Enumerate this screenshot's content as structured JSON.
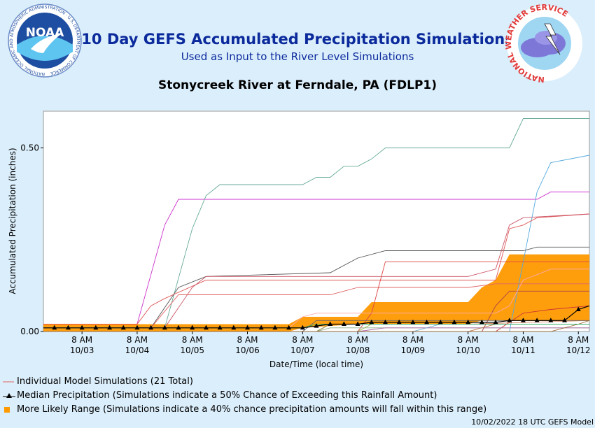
{
  "header": {
    "title": "10 Day GEFS Accumulated Precipitation Simulations",
    "subtitle": "Used as Input to the River Level Simulations",
    "station": "Stonycreek River at Ferndale, PA (FDLP1)",
    "noaa_logo_text": "NOAA",
    "noaa_ring_text": "NATIONAL OCEANIC AND ATMOSPHERIC ADMINISTRATION · U.S. DEPARTMENT OF COMMERCE",
    "nws_ring_text": "NATIONAL WEATHER SERVICE"
  },
  "legend": {
    "individual": "Individual Model Simulations (21 Total)",
    "median": "Median Precipitation (Simulations indicate a 50% Chance of Exceeding this Rainfall Amount)",
    "range": "More Likely Range (Simulations indicate a 40% chance precipitation amounts will fall within this range)"
  },
  "footer": "10/02/2022 18 UTC GEFS Model",
  "colors": {
    "background": "#dbeefb",
    "title": "#0b2a9c",
    "range_fill": "#ff9900",
    "median": "#000000",
    "plot_bg": "#ffffff"
  },
  "chart_data": {
    "type": "line",
    "xlabel": "Date/Time (local time)",
    "ylabel": "Accumulated Precipitation (inches)",
    "ylim": [
      0,
      0.6
    ],
    "yticks": [
      0.0,
      0.5
    ],
    "ytick_labels": [
      "0.00",
      "0.50"
    ],
    "xlim": [
      -0.7,
      9.2
    ],
    "xticks": [
      {
        "x": 0,
        "line1": "8 AM",
        "line2": "10/03"
      },
      {
        "x": 1,
        "line1": "8 AM",
        "line2": "10/04"
      },
      {
        "x": 2,
        "line1": "8 AM",
        "line2": "10/05"
      },
      {
        "x": 3,
        "line1": "8 AM",
        "line2": "10/06"
      },
      {
        "x": 4,
        "line1": "8 AM",
        "line2": "10/07"
      },
      {
        "x": 5,
        "line1": "8 AM",
        "line2": "10/08"
      },
      {
        "x": 6,
        "line1": "8 AM",
        "line2": "10/09"
      },
      {
        "x": 7,
        "line1": "8 AM",
        "line2": "10/10"
      },
      {
        "x": 8,
        "line1": "8 AM",
        "line2": "10/11"
      },
      {
        "x": 9,
        "line1": "8 AM",
        "line2": "10/12"
      }
    ],
    "range_band": [
      [
        -0.7,
        0.0,
        0.02
      ],
      [
        3.75,
        0.0,
        0.02
      ],
      [
        4.0,
        0.01,
        0.04
      ],
      [
        5.0,
        0.02,
        0.04
      ],
      [
        5.25,
        0.02,
        0.08
      ],
      [
        7.0,
        0.02,
        0.08
      ],
      [
        7.25,
        0.03,
        0.12
      ],
      [
        7.5,
        0.03,
        0.14
      ],
      [
        7.75,
        0.03,
        0.21
      ],
      [
        9.2,
        0.03,
        0.21
      ]
    ],
    "series": [
      {
        "color": "#cc33cc",
        "points": [
          [
            -0.7,
            0.02
          ],
          [
            1.0,
            0.02
          ],
          [
            1.5,
            0.29
          ],
          [
            1.75,
            0.36
          ],
          [
            8.25,
            0.36
          ],
          [
            8.5,
            0.38
          ],
          [
            9.2,
            0.38
          ]
        ]
      },
      {
        "color": "#66aa99",
        "points": [
          [
            -0.7,
            0.01
          ],
          [
            1.5,
            0.01
          ],
          [
            2.0,
            0.28
          ],
          [
            2.25,
            0.37
          ],
          [
            2.5,
            0.4
          ],
          [
            4.0,
            0.4
          ],
          [
            4.25,
            0.42
          ],
          [
            4.5,
            0.42
          ],
          [
            4.75,
            0.45
          ],
          [
            5.0,
            0.45
          ],
          [
            5.25,
            0.47
          ],
          [
            5.5,
            0.5
          ],
          [
            7.75,
            0.5
          ],
          [
            8.0,
            0.58
          ],
          [
            9.2,
            0.58
          ]
        ]
      },
      {
        "color": "#55aadd",
        "points": [
          [
            -0.7,
            0.0
          ],
          [
            7.75,
            0.0
          ],
          [
            8.25,
            0.38
          ],
          [
            8.5,
            0.46
          ],
          [
            9.2,
            0.48
          ]
        ]
      },
      {
        "color": "#555555",
        "points": [
          [
            -0.7,
            0.01
          ],
          [
            1.25,
            0.01
          ],
          [
            1.75,
            0.12
          ],
          [
            2.25,
            0.15
          ],
          [
            4.5,
            0.16
          ],
          [
            4.75,
            0.18
          ],
          [
            5.0,
            0.2
          ],
          [
            5.5,
            0.22
          ],
          [
            8.0,
            0.22
          ],
          [
            8.25,
            0.23
          ],
          [
            9.2,
            0.23
          ]
        ]
      },
      {
        "color": "#e05555",
        "points": [
          [
            -0.7,
            0.02
          ],
          [
            1.0,
            0.02
          ],
          [
            1.25,
            0.07
          ],
          [
            1.5,
            0.09
          ],
          [
            2.25,
            0.14
          ],
          [
            7.5,
            0.14
          ],
          [
            7.75,
            0.28
          ],
          [
            8.0,
            0.29
          ],
          [
            8.25,
            0.31
          ],
          [
            9.2,
            0.32
          ]
        ]
      },
      {
        "color": "#cc5566",
        "points": [
          [
            -0.7,
            0.01
          ],
          [
            1.5,
            0.01
          ],
          [
            2.0,
            0.12
          ],
          [
            2.25,
            0.15
          ],
          [
            7.0,
            0.15
          ],
          [
            7.5,
            0.17
          ],
          [
            7.75,
            0.29
          ],
          [
            8.0,
            0.31
          ],
          [
            9.2,
            0.32
          ]
        ]
      },
      {
        "color": "#e06666",
        "points": [
          [
            -0.7,
            0.01
          ],
          [
            1.25,
            0.01
          ],
          [
            1.75,
            0.1
          ],
          [
            2.25,
            0.1
          ],
          [
            4.5,
            0.1
          ],
          [
            4.75,
            0.11
          ],
          [
            5.0,
            0.12
          ],
          [
            7.0,
            0.12
          ],
          [
            7.5,
            0.13
          ],
          [
            9.2,
            0.13
          ]
        ]
      },
      {
        "color": "#dd4444",
        "points": [
          [
            -0.7,
            0.0
          ],
          [
            5.0,
            0.0
          ],
          [
            5.25,
            0.05
          ],
          [
            5.5,
            0.19
          ],
          [
            7.5,
            0.19
          ],
          [
            7.75,
            0.19
          ],
          [
            9.2,
            0.19
          ]
        ]
      },
      {
        "color": "#aa4444",
        "points": [
          [
            -0.7,
            0.0
          ],
          [
            7.25,
            0.0
          ],
          [
            7.5,
            0.07
          ],
          [
            7.75,
            0.11
          ],
          [
            9.2,
            0.11
          ]
        ]
      },
      {
        "color": "#cc3333",
        "points": [
          [
            -0.7,
            0.0
          ],
          [
            7.5,
            0.0
          ],
          [
            8.0,
            0.05
          ],
          [
            8.5,
            0.06
          ],
          [
            9.2,
            0.07
          ]
        ]
      },
      {
        "color": "#ffaaaa",
        "points": [
          [
            -0.7,
            0.01
          ],
          [
            3.75,
            0.01
          ],
          [
            4.0,
            0.04
          ],
          [
            4.25,
            0.05
          ],
          [
            5.5,
            0.05
          ],
          [
            7.5,
            0.05
          ],
          [
            7.75,
            0.07
          ],
          [
            8.0,
            0.14
          ],
          [
            8.5,
            0.17
          ],
          [
            9.2,
            0.17
          ]
        ]
      },
      {
        "color": "#dd8866",
        "points": [
          [
            -0.7,
            0.0
          ],
          [
            4.25,
            0.0
          ],
          [
            4.5,
            0.02
          ],
          [
            5.0,
            0.02
          ],
          [
            7.0,
            0.02
          ],
          [
            9.2,
            0.03
          ]
        ]
      },
      {
        "color": "#88aa88",
        "points": [
          [
            -0.7,
            0.0
          ],
          [
            4.25,
            0.0
          ],
          [
            4.5,
            0.01
          ],
          [
            9.2,
            0.01
          ]
        ]
      },
      {
        "color": "#888833",
        "points": [
          [
            -0.7,
            0.0
          ],
          [
            4.25,
            0.0
          ],
          [
            4.5,
            0.02
          ],
          [
            9.2,
            0.02
          ]
        ]
      },
      {
        "color": "#666666",
        "points": [
          [
            -0.7,
            0.0
          ],
          [
            4.0,
            0.0
          ],
          [
            4.25,
            0.03
          ],
          [
            5.0,
            0.03
          ],
          [
            7.5,
            0.03
          ],
          [
            9.2,
            0.03
          ]
        ]
      },
      {
        "color": "#99bb55",
        "points": [
          [
            -0.7,
            0.0
          ],
          [
            5.0,
            0.0
          ],
          [
            5.25,
            0.02
          ],
          [
            9.2,
            0.02
          ]
        ]
      },
      {
        "color": "#aa66aa",
        "points": [
          [
            -0.7,
            0.0
          ],
          [
            5.0,
            0.0
          ],
          [
            5.5,
            0.01
          ],
          [
            9.2,
            0.01
          ]
        ]
      },
      {
        "color": "#bb7744",
        "points": [
          [
            -0.7,
            0.0
          ],
          [
            7.0,
            0.0
          ],
          [
            7.5,
            0.02
          ],
          [
            9.2,
            0.02
          ]
        ]
      },
      {
        "color": "#77aacc",
        "points": [
          [
            -0.7,
            0.0
          ],
          [
            6.0,
            0.0
          ],
          [
            6.5,
            0.02
          ],
          [
            9.2,
            0.02
          ]
        ]
      },
      {
        "color": "#996633",
        "points": [
          [
            -0.7,
            0.0
          ],
          [
            8.5,
            0.0
          ],
          [
            9.0,
            0.02
          ],
          [
            9.2,
            0.03
          ]
        ]
      },
      {
        "color": "#33aa66",
        "points": [
          [
            -0.7,
            0.01
          ],
          [
            4.0,
            0.01
          ],
          [
            4.25,
            0.02
          ],
          [
            9.2,
            0.02
          ]
        ]
      }
    ],
    "median": {
      "points": [
        [
          -0.7,
          0.01
        ],
        [
          -0.5,
          0.01
        ],
        [
          -0.25,
          0.01
        ],
        [
          0.0,
          0.01
        ],
        [
          0.25,
          0.01
        ],
        [
          0.5,
          0.01
        ],
        [
          0.75,
          0.01
        ],
        [
          1.0,
          0.01
        ],
        [
          1.25,
          0.01
        ],
        [
          1.5,
          0.01
        ],
        [
          1.75,
          0.01
        ],
        [
          2.0,
          0.01
        ],
        [
          2.25,
          0.01
        ],
        [
          2.5,
          0.01
        ],
        [
          2.75,
          0.01
        ],
        [
          3.0,
          0.01
        ],
        [
          3.25,
          0.01
        ],
        [
          3.5,
          0.01
        ],
        [
          3.75,
          0.01
        ],
        [
          4.0,
          0.01
        ],
        [
          4.25,
          0.015
        ],
        [
          4.5,
          0.02
        ],
        [
          4.75,
          0.02
        ],
        [
          5.0,
          0.02
        ],
        [
          5.25,
          0.025
        ],
        [
          5.5,
          0.025
        ],
        [
          5.75,
          0.025
        ],
        [
          6.0,
          0.025
        ],
        [
          6.25,
          0.025
        ],
        [
          6.5,
          0.025
        ],
        [
          6.75,
          0.025
        ],
        [
          7.0,
          0.025
        ],
        [
          7.25,
          0.025
        ],
        [
          7.5,
          0.025
        ],
        [
          7.75,
          0.03
        ],
        [
          8.0,
          0.03
        ],
        [
          8.25,
          0.03
        ],
        [
          8.5,
          0.03
        ],
        [
          8.75,
          0.03
        ],
        [
          9.0,
          0.06
        ],
        [
          9.2,
          0.07
        ]
      ]
    }
  }
}
